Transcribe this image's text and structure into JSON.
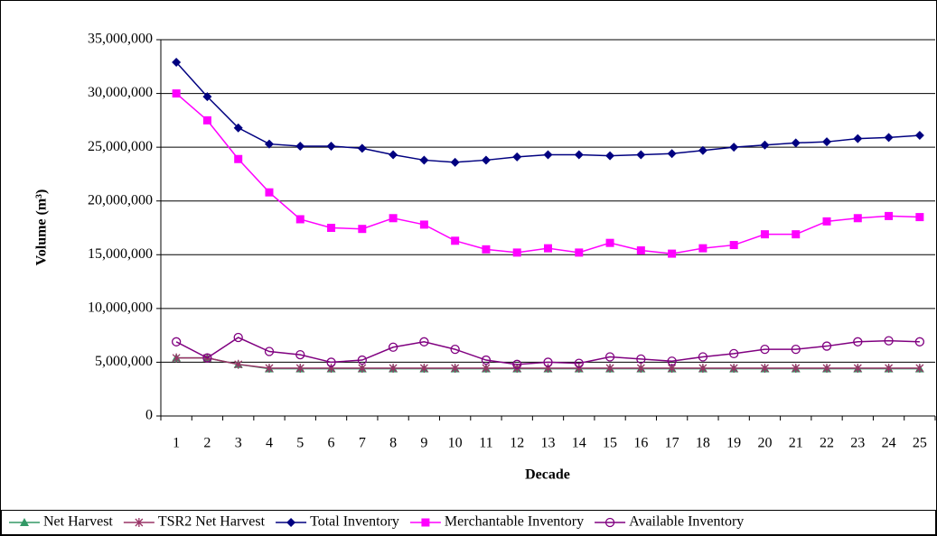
{
  "chart_data": {
    "type": "line",
    "x_label": "Decade",
    "y_label": "Volume (m³)",
    "categories": [
      "1",
      "2",
      "3",
      "4",
      "5",
      "6",
      "7",
      "8",
      "9",
      "10",
      "11",
      "12",
      "13",
      "14",
      "15",
      "16",
      "17",
      "18",
      "19",
      "20",
      "21",
      "22",
      "23",
      "24",
      "25"
    ],
    "ylim": [
      0,
      35000000
    ],
    "yticks": [
      0,
      {
        "value": 5000000,
        "label": "5,000,000"
      },
      {
        "value": 10000000,
        "label": "10,000,000"
      },
      {
        "value": 15000000,
        "label": "15,000,000"
      },
      {
        "value": 20000000,
        "label": "20,000,000"
      },
      {
        "value": 25000000,
        "label": "25,000,000"
      },
      {
        "value": 30000000,
        "label": "30,000,000"
      },
      {
        "value": 35000000,
        "label": "35,000,000"
      }
    ],
    "grid": true,
    "legend": "bottom",
    "series": [
      {
        "name": "Net Harvest",
        "color": "#339966",
        "marker": "triangle",
        "values": [
          5400000,
          5400000,
          4800000,
          4400000,
          4400000,
          4400000,
          4400000,
          4400000,
          4400000,
          4400000,
          4400000,
          4400000,
          4400000,
          4400000,
          4400000,
          4400000,
          4400000,
          4400000,
          4400000,
          4400000,
          4400000,
          4400000,
          4400000,
          4400000,
          4400000
        ]
      },
      {
        "name": "TSR2 Net Harvest",
        "color": "#993366",
        "marker": "star",
        "values": [
          5400000,
          5400000,
          4800000,
          4450000,
          4450000,
          4450000,
          4450000,
          4450000,
          4450000,
          4450000,
          4450000,
          4450000,
          4450000,
          4450000,
          4450000,
          4450000,
          4450000,
          4450000,
          4450000,
          4450000,
          4450000,
          4450000,
          4450000,
          4450000,
          4450000
        ]
      },
      {
        "name": "Total Inventory",
        "color": "#000080",
        "marker": "diamond",
        "values": [
          32900000,
          29700000,
          26800000,
          25300000,
          25100000,
          25100000,
          24900000,
          24300000,
          23800000,
          23600000,
          23800000,
          24100000,
          24300000,
          24300000,
          24200000,
          24300000,
          24400000,
          24700000,
          25000000,
          25200000,
          25400000,
          25500000,
          25800000,
          25900000,
          26100000
        ]
      },
      {
        "name": "Merchantable Inventory",
        "color": "#ff00ff",
        "marker": "square",
        "values": [
          30000000,
          27500000,
          23900000,
          20800000,
          18300000,
          17500000,
          17400000,
          18400000,
          17800000,
          16300000,
          15500000,
          15200000,
          15600000,
          15200000,
          16100000,
          15400000,
          15100000,
          15600000,
          15900000,
          16900000,
          16900000,
          18100000,
          18400000,
          18600000,
          18500000
        ]
      },
      {
        "name": "Available Inventory",
        "color": "#800080",
        "marker": "circle",
        "values": [
          6900000,
          5400000,
          7300000,
          6000000,
          5700000,
          5000000,
          5200000,
          6400000,
          6900000,
          6200000,
          5200000,
          4800000,
          5000000,
          4900000,
          5500000,
          5300000,
          5100000,
          5500000,
          5800000,
          6200000,
          6200000,
          6500000,
          6900000,
          7000000,
          6900000
        ]
      }
    ]
  }
}
